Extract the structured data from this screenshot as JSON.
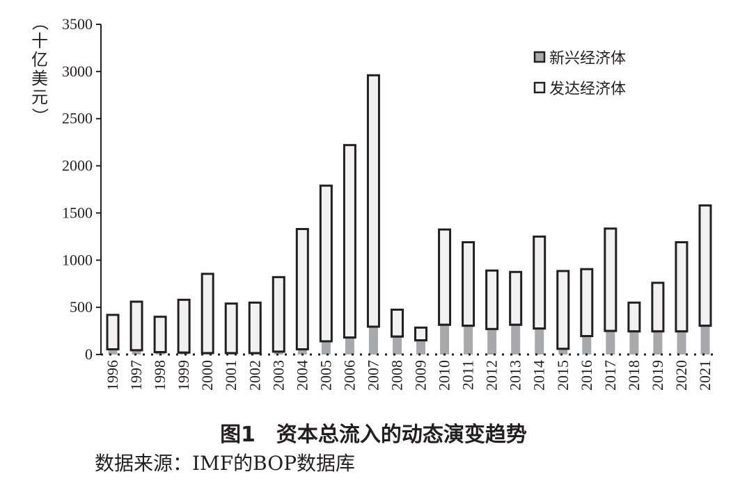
{
  "chart_data": {
    "type": "bar",
    "stacked": true,
    "ylabel": "（十亿美元）",
    "ylim": [
      0,
      3500
    ],
    "yticks": [
      0,
      500,
      1000,
      1500,
      2000,
      2500,
      3000,
      3500
    ],
    "legend_position": "top-right",
    "categories": [
      "1996",
      "1997",
      "1998",
      "1999",
      "2000",
      "2001",
      "2002",
      "2003",
      "2004",
      "2005",
      "2006",
      "2007",
      "2008",
      "2009",
      "2010",
      "2011",
      "2012",
      "2013",
      "2014",
      "2015",
      "2016",
      "2017",
      "2018",
      "2019",
      "2020",
      "2021"
    ],
    "series": [
      {
        "name": "新兴经济体",
        "color": "#a7a9ac",
        "values": [
          55,
          45,
          25,
          20,
          15,
          15,
          15,
          30,
          55,
          140,
          180,
          295,
          190,
          150,
          315,
          305,
          270,
          315,
          275,
          60,
          195,
          250,
          245,
          245,
          245,
          305
        ]
      },
      {
        "name": "发达经济体",
        "color": "#f1f1f2",
        "values": [
          365,
          515,
          375,
          560,
          840,
          525,
          535,
          790,
          1275,
          1650,
          2040,
          2665,
          285,
          135,
          1010,
          885,
          620,
          560,
          975,
          825,
          710,
          1085,
          305,
          515,
          945,
          1275
        ]
      }
    ]
  },
  "caption": "图1　资本总流入的动态演变趋势",
  "source": "数据来源：IMF的BOP数据库"
}
